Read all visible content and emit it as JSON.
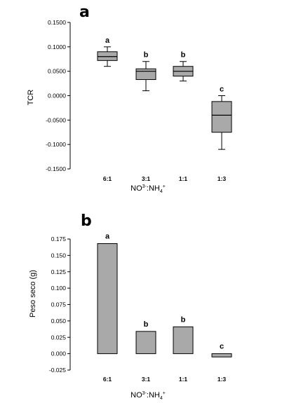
{
  "chart_data": [
    {
      "panel": "a",
      "type": "box",
      "xlabel": "NO3-:NH4+",
      "ylabel": "TCR",
      "ylim": [
        -0.15,
        0.15
      ],
      "yticks": [
        "0.1500",
        "0.1000",
        "0.0500",
        "0.0000",
        "-0.0500",
        "-0.1000",
        "-0.1500"
      ],
      "ytick_values": [
        0.15,
        0.1,
        0.05,
        0.0,
        -0.05,
        -0.1,
        -0.15
      ],
      "categories": [
        "6:1",
        "3:1",
        "1:1",
        "1:3"
      ],
      "boxes": [
        {
          "category": "6:1",
          "min": 0.06,
          "q1": 0.072,
          "median": 0.08,
          "q3": 0.09,
          "max": 0.1,
          "letter": "a"
        },
        {
          "category": "3:1",
          "min": 0.01,
          "q1": 0.033,
          "median": 0.05,
          "q3": 0.055,
          "max": 0.07,
          "letter": "b"
        },
        {
          "category": "1:1",
          "min": 0.03,
          "q1": 0.04,
          "median": 0.05,
          "q3": 0.06,
          "max": 0.07,
          "letter": "b"
        },
        {
          "category": "1:3",
          "min": -0.11,
          "q1": -0.075,
          "median": -0.04,
          "q3": -0.012,
          "max": 0.0,
          "letter": "c"
        }
      ],
      "fill_color": "#a9a9a9"
    },
    {
      "panel": "b",
      "type": "bar",
      "xlabel": "NO3-:NH4+",
      "ylabel": "Peso seco (g)",
      "ylim": [
        -0.025,
        0.175
      ],
      "yticks": [
        "0.175",
        "0.150",
        "0.125",
        "0.100",
        "0.075",
        "0.050",
        "0.025",
        "0.000",
        "-0.025"
      ],
      "ytick_values": [
        0.175,
        0.15,
        0.125,
        0.1,
        0.075,
        0.05,
        0.025,
        0.0,
        -0.025
      ],
      "categories": [
        "6:1",
        "3:1",
        "1:1",
        "1:3"
      ],
      "values": [
        0.168,
        0.034,
        0.041,
        -0.005
      ],
      "letters": [
        "a",
        "b",
        "b",
        "c"
      ],
      "fill_color": "#a9a9a9"
    }
  ]
}
